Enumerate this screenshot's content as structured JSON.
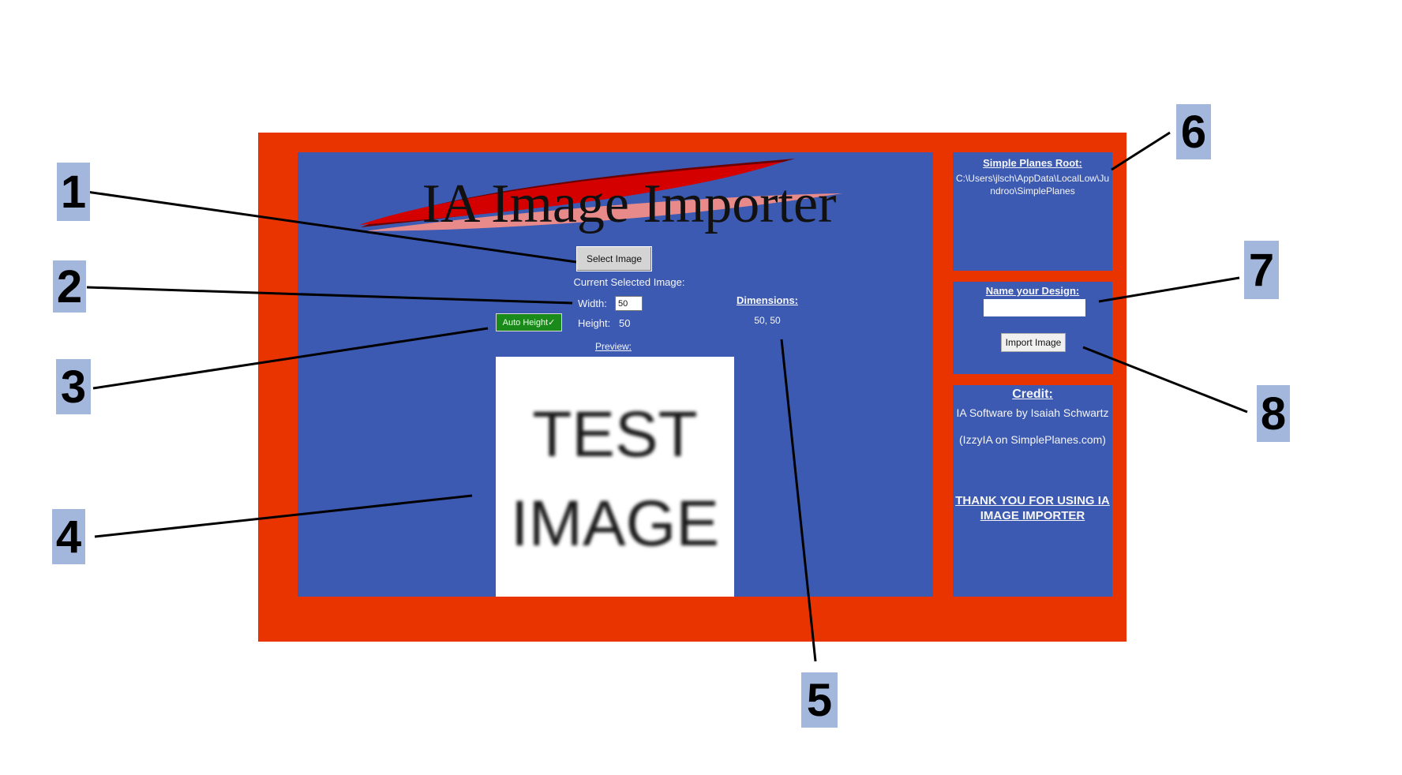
{
  "app": {
    "title": "IA Image Importer",
    "select_button": "Select Image",
    "current_label": "Current Selected Image:",
    "width_label": "Width:",
    "width_value": "50",
    "height_label": "Height:",
    "height_value": "50",
    "auto_height_button": "Auto Height✓",
    "dimensions_label": "Dimensions:",
    "dimensions_value": "50, 50",
    "preview_label": "Preview:",
    "preview_image_lines": [
      "TEST",
      "IMAGE"
    ]
  },
  "root_panel": {
    "heading": "Simple Planes Root:",
    "path": "C:\\Users\\jlsch\\AppData\\LocalLow\\Jundroo\\SimplePlanes"
  },
  "design_panel": {
    "heading": "Name your Design:",
    "name_value": "",
    "import_button": "Import Image"
  },
  "credit_panel": {
    "heading": "Credit:",
    "line1": "IA Software by Isaiah Schwartz",
    "line2": "(IzzyIA on SimplePlanes.com)",
    "thanks": "THANK YOU FOR USING IA IMAGE IMPORTER"
  },
  "callouts": [
    "1",
    "2",
    "3",
    "4",
    "5",
    "6",
    "7",
    "8"
  ],
  "colors": {
    "frame": "#e93400",
    "panel": "#3c5ab1",
    "auto_height": "#1a8a1a",
    "callout_bg": "#a3b6dc"
  }
}
